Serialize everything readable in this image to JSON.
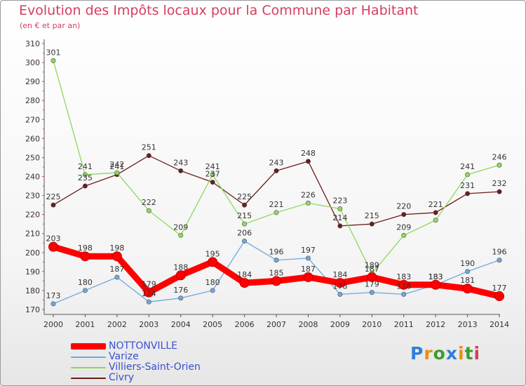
{
  "chart_data": {
    "type": "line",
    "title": "Evolution des Impôts locaux pour la Commune par Habitant",
    "subtitle": "(en € et par an)",
    "x": [
      "2000",
      "2001",
      "2002",
      "2003",
      "2004",
      "2005",
      "2006",
      "2007",
      "2008",
      "2009",
      "2010",
      "2011",
      "2012",
      "2013",
      "2014"
    ],
    "y_ticks": [
      170,
      180,
      190,
      200,
      210,
      220,
      230,
      240,
      250,
      260,
      270,
      280,
      290,
      300,
      310
    ],
    "ylim": [
      170,
      310
    ],
    "grid": false,
    "legend_position": "bottom-left",
    "series": [
      {
        "name": "NOTTONVILLE",
        "color": "#ff0000",
        "values": [
          203,
          198,
          198,
          179,
          188,
          195,
          184,
          185,
          187,
          184,
          187,
          183,
          183,
          181,
          177
        ],
        "labels": [
          "203",
          "198",
          "198",
          "179",
          "188",
          "195",
          "184",
          "185",
          "187",
          "184",
          "187",
          "183",
          "183",
          "181",
          "177"
        ]
      },
      {
        "name": "Varize",
        "color": "#6fa8dc",
        "values": [
          173,
          180,
          187,
          174,
          176,
          180,
          206,
          196,
          197,
          178,
          179,
          178,
          183,
          190,
          196
        ],
        "labels": [
          "173",
          "180",
          "187",
          "174",
          "176",
          "180",
          "206",
          "196",
          "197",
          "178",
          "179",
          "178",
          "183",
          "190",
          "196"
        ]
      },
      {
        "name": "Villiers-Saint-Orien",
        "color": "#8ed85a",
        "values": [
          301,
          241,
          242,
          222,
          209,
          241,
          215,
          221,
          226,
          223,
          189,
          209,
          217,
          241,
          246
        ],
        "labels": [
          "301",
          "241",
          "242",
          "222",
          "209",
          "241",
          "215",
          "221",
          "226",
          "223",
          "189",
          "209",
          "",
          "241",
          "246"
        ]
      },
      {
        "name": "Civry",
        "color": "#6b1c1c",
        "values": [
          225,
          235,
          241,
          251,
          243,
          237,
          225,
          243,
          248,
          214,
          215,
          220,
          221,
          231,
          232
        ],
        "labels": [
          "225",
          "235",
          "241",
          "251",
          "243",
          "237",
          "225",
          "243",
          "248",
          "214",
          "215",
          "220",
          "221",
          "231",
          "232"
        ]
      }
    ]
  },
  "logo": {
    "text": [
      "P",
      "r",
      "o",
      "x",
      "i",
      "t",
      "i"
    ]
  }
}
